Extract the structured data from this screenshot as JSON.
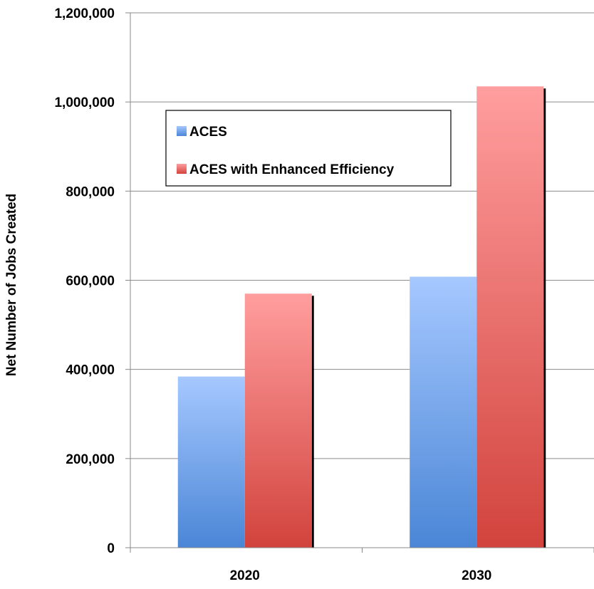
{
  "chart_data": {
    "type": "bar",
    "title": "",
    "xlabel": "",
    "ylabel": "Net Number of Jobs Created",
    "categories": [
      "2020",
      "2030"
    ],
    "series": [
      {
        "name": "ACES",
        "values": [
          384000,
          608000
        ],
        "color": "#6b9be6"
      },
      {
        "name": "ACES with Enhanced Efficiency",
        "values": [
          570000,
          1035000
        ],
        "color": "#e76e6b"
      }
    ],
    "ylim": [
      0,
      1200000
    ],
    "yticks": [
      0,
      200000,
      400000,
      600000,
      800000,
      1000000,
      1200000
    ],
    "ytick_labels": [
      "0",
      "200,000",
      "400,000",
      "600,000",
      "800,000",
      "1,000,000",
      "1,200,000"
    ],
    "grid": true,
    "legend_position": "upper-left inside plot"
  }
}
